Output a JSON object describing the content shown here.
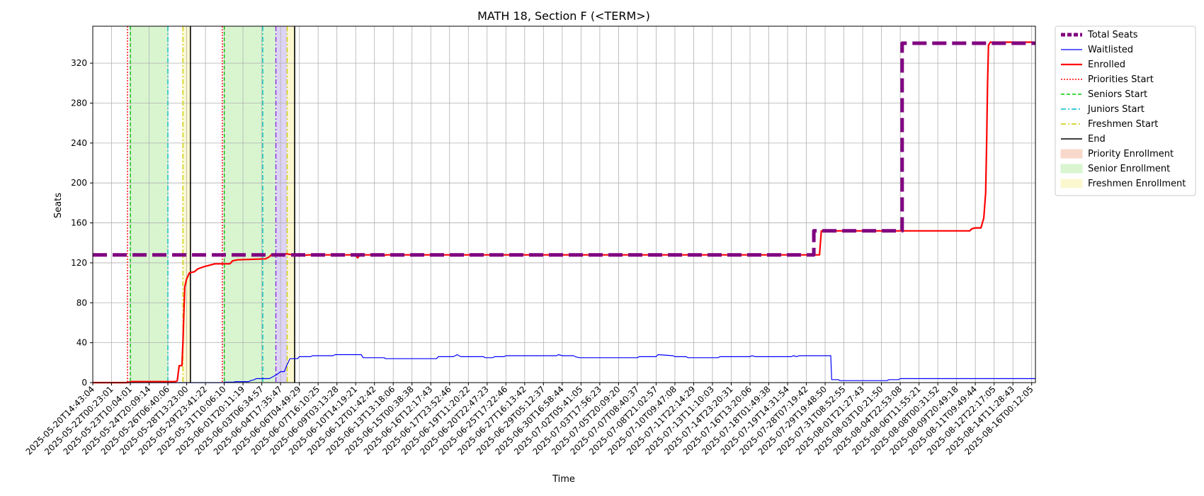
{
  "chart_data": {
    "type": "line",
    "title": "MATH 18, Section F (<TERM>)",
    "xlabel": "Time",
    "ylabel": "Seats",
    "ylim": [
      0,
      357
    ],
    "yticks": [
      0,
      40,
      80,
      120,
      160,
      200,
      240,
      280,
      320
    ],
    "grid": true,
    "legend_position": "outside-top-right",
    "x_ticks": [
      "2025-05-20T14:43:04",
      "2025-05-22T00:23:01",
      "2025-05-23T10:04:01",
      "2025-05-24T20:09:14",
      "2025-05-26T06:40:06",
      "2025-05-28T13:23:00",
      "2025-05-29T23:41:22",
      "2025-05-31T10:06:10",
      "2025-06-01T20:11:19",
      "2025-06-03T06:34:57",
      "2025-06-04T17:35:47",
      "2025-06-06T04:49:29",
      "2025-06-07T16:10:25",
      "2025-06-09T03:13:28",
      "2025-06-10T14:19:21",
      "2025-06-12T01:42:42",
      "2025-06-13T13:18:06",
      "2025-06-15T00:38:38",
      "2025-06-16T12:17:43",
      "2025-06-17T23:52:46",
      "2025-06-19T11:20:22",
      "2025-06-20T22:47:23",
      "2025-06-25T17:22:46",
      "2025-06-27T16:13:42",
      "2025-06-29T05:12:37",
      "2025-06-30T16:58:44",
      "2025-07-02T05:41:05",
      "2025-07-03T17:56:23",
      "2025-07-05T20:09:20",
      "2025-07-07T08:40:37",
      "2025-07-08T21:02:57",
      "2025-07-10T09:47:08",
      "2025-07-11T22:14:29",
      "2025-07-13T11:10:03",
      "2025-07-14T23:20:31",
      "2025-07-16T13:20:06",
      "2025-07-18T01:49:38",
      "2025-07-19T14:31:54",
      "2025-07-28T07:19:42",
      "2025-07-29T19:48:50",
      "2025-07-31T08:52:55",
      "2025-08-01T21:27:43",
      "2025-08-03T10:21:50",
      "2025-08-04T22:53:08",
      "2025-08-06T11:55:21",
      "2025-08-08T00:31:52",
      "2025-08-09T20:49:18",
      "2025-08-11T09:49:44",
      "2025-08-12T22:17:05",
      "2025-08-14T11:28:43",
      "2025-08-16T00:12:05"
    ],
    "x_index_range": [
      0,
      50.2
    ],
    "series": [
      {
        "name": "Total Seats",
        "color": "#800080",
        "style": "dashed-thick",
        "points": [
          [
            0,
            128
          ],
          [
            38.4,
            128
          ],
          [
            38.4,
            152
          ],
          [
            43.1,
            152
          ],
          [
            43.1,
            340
          ],
          [
            50.2,
            340
          ]
        ]
      },
      {
        "name": "Waitlisted",
        "color": "#0000ff",
        "style": "solid-thin",
        "points": [
          [
            0,
            0
          ],
          [
            7,
            0
          ],
          [
            7,
            0.5
          ],
          [
            7.5,
            0.5
          ],
          [
            7.6,
            1
          ],
          [
            8.3,
            1
          ],
          [
            8.4,
            2
          ],
          [
            8.6,
            3
          ],
          [
            8.7,
            4
          ],
          [
            9.4,
            4
          ],
          [
            9.5,
            5
          ],
          [
            9.6,
            6
          ],
          [
            9.8,
            8
          ],
          [
            10.0,
            11
          ],
          [
            10.2,
            11
          ],
          [
            10.35,
            18
          ],
          [
            10.5,
            24
          ],
          [
            10.9,
            24
          ],
          [
            11.0,
            26
          ],
          [
            11.6,
            26
          ],
          [
            11.7,
            27
          ],
          [
            12.8,
            27
          ],
          [
            12.9,
            28
          ],
          [
            14.3,
            28
          ],
          [
            14.4,
            25
          ],
          [
            15.5,
            25
          ],
          [
            15.6,
            24
          ],
          [
            18.3,
            24
          ],
          [
            18.4,
            26
          ],
          [
            19.2,
            26
          ],
          [
            19.3,
            27
          ],
          [
            19.4,
            28
          ],
          [
            19.6,
            26
          ],
          [
            20.8,
            26
          ],
          [
            20.9,
            25
          ],
          [
            21.3,
            25
          ],
          [
            21.4,
            26
          ],
          [
            21.9,
            26
          ],
          [
            22.0,
            27
          ],
          [
            24.7,
            27
          ],
          [
            24.8,
            28
          ],
          [
            25.0,
            27
          ],
          [
            25.6,
            27
          ],
          [
            25.7,
            26
          ],
          [
            25.9,
            25
          ],
          [
            29.0,
            25
          ],
          [
            29.1,
            26
          ],
          [
            30.0,
            26
          ],
          [
            30.1,
            28
          ],
          [
            30.9,
            27
          ],
          [
            31.0,
            26
          ],
          [
            31.6,
            26
          ],
          [
            31.7,
            25
          ],
          [
            33.3,
            25
          ],
          [
            33.4,
            26
          ],
          [
            35.0,
            26
          ],
          [
            35.1,
            27
          ],
          [
            35.3,
            26
          ],
          [
            37.2,
            26
          ],
          [
            37.3,
            27
          ],
          [
            37.5,
            26
          ],
          [
            37.6,
            27
          ],
          [
            39.3,
            27
          ],
          [
            39.35,
            3
          ],
          [
            39.7,
            3
          ],
          [
            39.8,
            2
          ],
          [
            42.3,
            2
          ],
          [
            42.4,
            3
          ],
          [
            42.9,
            3
          ],
          [
            43.0,
            4
          ],
          [
            50.2,
            4
          ]
        ]
      },
      {
        "name": "Enrolled",
        "color": "#ff0000",
        "style": "solid",
        "points": [
          [
            0,
            0
          ],
          [
            1.8,
            0
          ],
          [
            2.1,
            1
          ],
          [
            4.4,
            1
          ],
          [
            4.5,
            2
          ],
          [
            4.6,
            17
          ],
          [
            4.75,
            17
          ],
          [
            4.8,
            40
          ],
          [
            4.85,
            70
          ],
          [
            4.9,
            96
          ],
          [
            5.0,
            104
          ],
          [
            5.15,
            110
          ],
          [
            5.4,
            111
          ],
          [
            5.6,
            114
          ],
          [
            5.9,
            116
          ],
          [
            6.5,
            119
          ],
          [
            7.3,
            119
          ],
          [
            7.45,
            122
          ],
          [
            7.7,
            123
          ],
          [
            9.2,
            124
          ],
          [
            9.4,
            126
          ],
          [
            9.5,
            128
          ],
          [
            10.0,
            128
          ],
          [
            10.3,
            129
          ],
          [
            11.0,
            127
          ],
          [
            11.5,
            128
          ],
          [
            14.0,
            128
          ],
          [
            14.1,
            125
          ],
          [
            14.3,
            129
          ],
          [
            14.5,
            128
          ],
          [
            15.4,
            128
          ],
          [
            15.5,
            127
          ],
          [
            15.6,
            128
          ],
          [
            38.5,
            128
          ],
          [
            38.7,
            128
          ],
          [
            38.8,
            152
          ],
          [
            46.7,
            152
          ],
          [
            46.8,
            154
          ],
          [
            47.0,
            155
          ],
          [
            47.3,
            155
          ],
          [
            47.45,
            165
          ],
          [
            47.55,
            190
          ],
          [
            47.6,
            240
          ],
          [
            47.65,
            300
          ],
          [
            47.7,
            338
          ],
          [
            47.8,
            341
          ],
          [
            50.2,
            341
          ]
        ]
      }
    ],
    "markers": [
      {
        "type": "Priorities Start",
        "x": 1.85,
        "color": "#ff0000"
      },
      {
        "type": "Seniors Start",
        "x": 2.0,
        "color": "#00bb00"
      },
      {
        "type": "Juniors Start",
        "x": 4.0,
        "color": "#00bbbb"
      },
      {
        "type": "Freshmen Start",
        "x": 4.8,
        "color": "#cccc00"
      },
      {
        "type": "End",
        "x": 5.2,
        "color": "#000000"
      },
      {
        "type": "Priorities Start",
        "x": 6.9,
        "color": "#ff0000"
      },
      {
        "type": "Seniors Start",
        "x": 7.0,
        "color": "#00bb00"
      },
      {
        "type": "Juniors Start",
        "x": 9.05,
        "color": "#00bbbb"
      },
      {
        "type": "Juniors Start",
        "x": 9.75,
        "color": "#8a2be2"
      },
      {
        "type": "Freshmen Start",
        "x": 10.35,
        "color": "#cccc00"
      },
      {
        "type": "End",
        "x": 10.75,
        "color": "#000000"
      }
    ],
    "bands": [
      {
        "name": "Senior Enrollment",
        "from": 2.0,
        "to": 4.0,
        "color": "#d8f5d0"
      },
      {
        "name": "Freshmen Enrollment",
        "from": 4.8,
        "to": 5.2,
        "color": "#fbf8d0"
      },
      {
        "name": "Senior Enrollment",
        "from": 7.0,
        "to": 9.75,
        "color": "#d8f5d0"
      },
      {
        "name": "Priority Enrollment",
        "from": 9.75,
        "to": 10.35,
        "color": "#ddd3f4"
      },
      {
        "name": "Freshmen Enrollment",
        "from": 10.35,
        "to": 10.75,
        "color": "#fbf8d0"
      }
    ],
    "legend": [
      {
        "label": "Total Seats",
        "kind": "line",
        "color": "#800080",
        "dash": "6,3",
        "width": 5
      },
      {
        "label": "Waitlisted",
        "kind": "line",
        "color": "#0000ff",
        "dash": "",
        "width": 1.2
      },
      {
        "label": "Enrolled",
        "kind": "line",
        "color": "#ff0000",
        "dash": "",
        "width": 2.2
      },
      {
        "label": "Priorities Start",
        "kind": "line",
        "color": "#ff0000",
        "dash": "2,2",
        "width": 1.4
      },
      {
        "label": "Seniors Start",
        "kind": "line",
        "color": "#00cc00",
        "dash": "5,3",
        "width": 1.4
      },
      {
        "label": "Juniors Start",
        "kind": "line",
        "color": "#00bbcc",
        "dash": "7,3,2,3",
        "width": 1.4
      },
      {
        "label": "Freshmen Start",
        "kind": "line",
        "color": "#cccc00",
        "dash": "7,3,2,3",
        "width": 1.4
      },
      {
        "label": "End",
        "kind": "line",
        "color": "#000000",
        "dash": "",
        "width": 1.4
      },
      {
        "label": "Priority Enrollment",
        "kind": "patch",
        "color": "#f9d8cc"
      },
      {
        "label": "Senior Enrollment",
        "kind": "patch",
        "color": "#d8f5d0"
      },
      {
        "label": "Freshmen Enrollment",
        "kind": "patch",
        "color": "#fbf8d0"
      }
    ]
  }
}
